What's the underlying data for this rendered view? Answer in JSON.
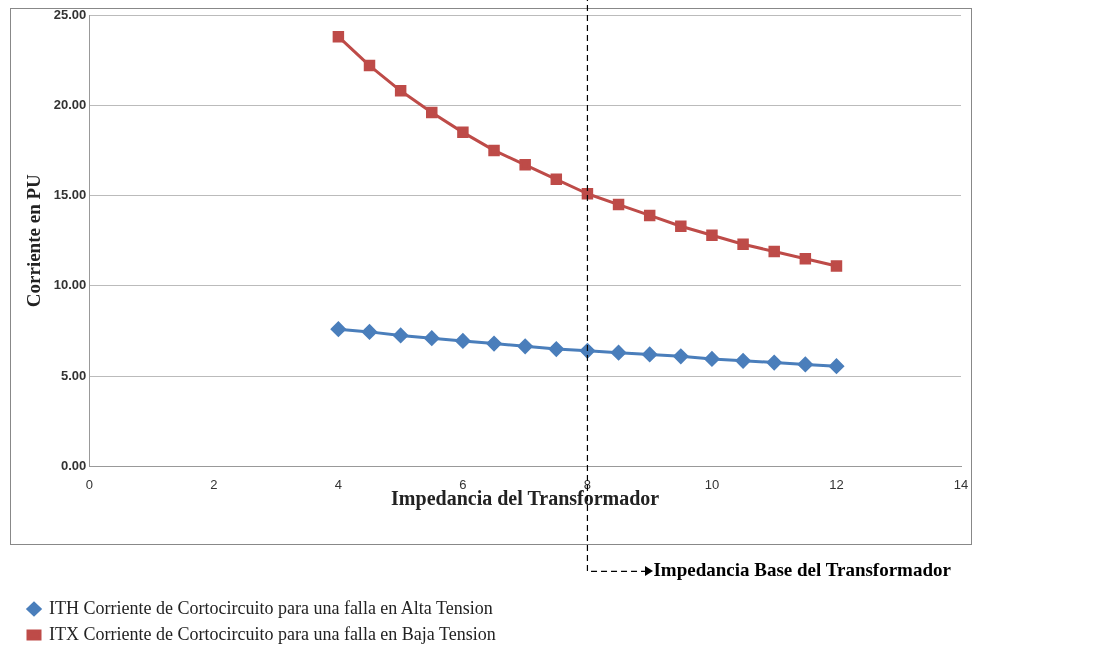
{
  "chart_data": {
    "type": "line",
    "xlabel": "Impedancia del Transformador",
    "ylabel": "Corriente en PU",
    "x": [
      4,
      4.5,
      5,
      5.5,
      6,
      6.5,
      7,
      7.5,
      8,
      8.5,
      9,
      9.5,
      10,
      10.5,
      11,
      11.5,
      12
    ],
    "series": [
      {
        "name": "ITH Corriente de Cortocircuito para una falla en Alta Tension",
        "color": "#4a7ebb",
        "marker": "diamond",
        "values": [
          7.6,
          7.45,
          7.25,
          7.1,
          6.95,
          6.8,
          6.65,
          6.5,
          6.4,
          6.3,
          6.2,
          6.1,
          5.95,
          5.85,
          5.75,
          5.65,
          5.55
        ]
      },
      {
        "name": "ITX Corriente de Cortocircuito para una falla en Baja Tension",
        "color": "#be4b48",
        "marker": "square",
        "values": [
          23.8,
          22.2,
          20.8,
          19.6,
          18.5,
          17.5,
          16.7,
          15.9,
          15.1,
          14.5,
          13.9,
          13.3,
          12.8,
          12.3,
          11.9,
          11.5,
          11.1
        ]
      }
    ],
    "xlim": [
      0,
      14
    ],
    "xticks": [
      0,
      2,
      4,
      6,
      8,
      10,
      12,
      14
    ],
    "ylim": [
      0,
      25
    ],
    "yticks": [
      {
        "value": 0,
        "label": "0.00"
      },
      {
        "value": 5,
        "label": "5.00"
      },
      {
        "value": 10,
        "label": "10.00"
      },
      {
        "value": 15,
        "label": "15.00"
      },
      {
        "value": 20,
        "label": "20.00"
      },
      {
        "value": 25,
        "label": "25.00"
      }
    ],
    "ref_lines": [
      {
        "axis": "x",
        "value": 8,
        "label": "Impedancia Base del Transformador",
        "color": "#000000",
        "line_style": "dashed"
      }
    ],
    "grid": "y",
    "legend": "bottom",
    "line_style": "solid"
  }
}
